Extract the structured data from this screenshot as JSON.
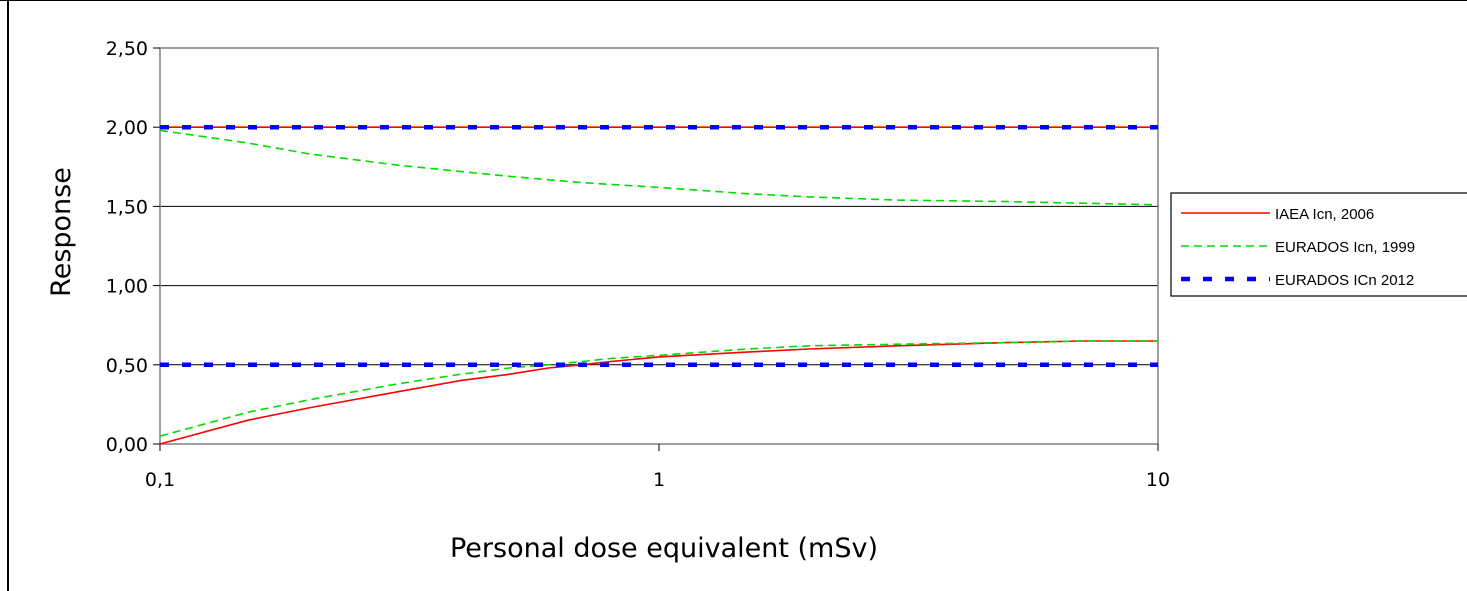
{
  "chart_data": {
    "type": "line",
    "title": "",
    "xlabel": "Personal dose equivalent (mSv)",
    "ylabel": "Response",
    "xscale": "log",
    "xlim": [
      0.1,
      10
    ],
    "ylim": [
      0,
      2.5
    ],
    "xticks": [
      {
        "value": 0.1,
        "label": "0,1"
      },
      {
        "value": 1,
        "label": "1"
      },
      {
        "value": 10,
        "label": "10"
      }
    ],
    "yticks": [
      {
        "value": 0,
        "label": "0,00"
      },
      {
        "value": 0.5,
        "label": "0,50"
      },
      {
        "value": 1,
        "label": "1,00"
      },
      {
        "value": 1.5,
        "label": "1,50"
      },
      {
        "value": 2,
        "label": "2,00"
      },
      {
        "value": 2.5,
        "label": "2,50"
      }
    ],
    "grid": "horizontal",
    "legend_position": "right",
    "series": [
      {
        "name": "IAEA Icn, 2006",
        "color": "#ff0000",
        "style": "solid",
        "lines": [
          {
            "x": [
              0.1,
              10
            ],
            "y": [
              2.0,
              2.0
            ]
          },
          {
            "x": [
              0.1,
              0.15,
              0.2,
              0.3,
              0.4,
              0.5,
              0.6,
              0.7,
              0.8,
              1,
              1.5,
              2,
              3,
              5,
              7,
              10
            ],
            "y": [
              0.0,
              0.15,
              0.23,
              0.33,
              0.4,
              0.44,
              0.48,
              0.5,
              0.52,
              0.55,
              0.58,
              0.6,
              0.62,
              0.64,
              0.65,
              0.65
            ]
          }
        ]
      },
      {
        "name": "EURADOS Icn, 1999",
        "color": "#00dd00",
        "style": "dashed",
        "lines": [
          {
            "x": [
              0.1,
              0.15,
              0.2,
              0.3,
              0.5,
              0.7,
              1,
              1.5,
              2,
              3,
              5,
              7,
              10
            ],
            "y": [
              1.98,
              1.9,
              1.83,
              1.76,
              1.69,
              1.65,
              1.62,
              1.58,
              1.56,
              1.54,
              1.53,
              1.52,
              1.51
            ]
          },
          {
            "x": [
              0.1,
              0.15,
              0.2,
              0.3,
              0.4,
              0.5,
              0.6,
              0.7,
              0.8,
              1,
              1.5,
              2,
              3,
              5,
              7,
              10
            ],
            "y": [
              0.05,
              0.2,
              0.28,
              0.38,
              0.44,
              0.48,
              0.5,
              0.52,
              0.54,
              0.56,
              0.6,
              0.62,
              0.63,
              0.64,
              0.65,
              0.65
            ]
          }
        ]
      },
      {
        "name": "EURADOS ICn 2012",
        "color": "#0000ff",
        "style": "dashed-thick",
        "lines": [
          {
            "x": [
              0.1,
              10
            ],
            "y": [
              2.0,
              2.0
            ]
          },
          {
            "x": [
              0.1,
              10
            ],
            "y": [
              0.5,
              0.5
            ]
          }
        ]
      }
    ]
  }
}
